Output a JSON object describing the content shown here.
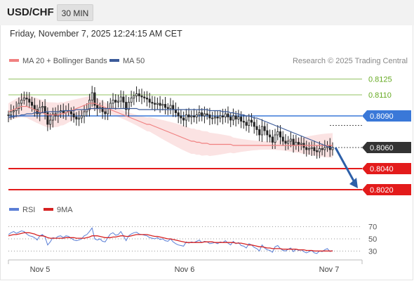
{
  "header": {
    "pair": "USD/CHF",
    "timeframe": "30 MIN",
    "datetime": "Friday, November 7, 2025 12:24:15 AM CET"
  },
  "legend": {
    "ma20": "MA 20 + Bollinger Bands",
    "ma50": "MA 50",
    "credit": "Research © 2025 Trading Central",
    "rsi": "RSI",
    "ma9": "9MA"
  },
  "colors": {
    "candle_up": "#222222",
    "candle_down": "#222222",
    "ma20": "#f08080",
    "bollinger_fill": "#fbe0e0",
    "ma50": "#3b5a99",
    "resistance_green": "#66aa22",
    "current_level_blue": "#3a78d8",
    "support_red": "#e31b1b",
    "current_price_tag": "#333333",
    "arrow": "#2d5fa8",
    "rsi": "#5b7fd6",
    "rsi_ma": "#d62222"
  },
  "chart_data": [
    {
      "type": "candlestick",
      "title": "USD/CHF",
      "x_ticks": [
        "Nov 5",
        "Nov 6",
        "Nov 7"
      ],
      "ylim": [
        0.8012,
        0.8136
      ],
      "levels": [
        {
          "value": 0.8125,
          "label": "0.8125",
          "style": "green-line"
        },
        {
          "value": 0.811,
          "label": "0.8110",
          "style": "green-line"
        },
        {
          "value": 0.809,
          "label": "0.8090",
          "style": "blue-tag"
        },
        {
          "value": 0.806,
          "label": "0.8060",
          "style": "current-price-tag"
        },
        {
          "value": 0.804,
          "label": "0.8040",
          "style": "red-tag"
        },
        {
          "value": 0.802,
          "label": "0.8020",
          "style": "red-tag"
        }
      ],
      "forecast_arrow": {
        "from": 0.806,
        "to": 0.802,
        "direction": "down"
      },
      "close": [
        0.8091,
        0.8094,
        0.8095,
        0.8097,
        0.8102,
        0.8105,
        0.8107,
        0.8106,
        0.8103,
        0.81,
        0.8096,
        0.8092,
        0.8098,
        0.8099,
        0.8093,
        0.8082,
        0.8086,
        0.8092,
        0.809,
        0.8094,
        0.8095,
        0.8093,
        0.8095,
        0.8094,
        0.8092,
        0.8089,
        0.8087,
        0.8088,
        0.809,
        0.8094,
        0.8096,
        0.8105,
        0.8112,
        0.81,
        0.8097,
        0.8098,
        0.8094,
        0.8092,
        0.8097,
        0.8102,
        0.8105,
        0.8103,
        0.8104,
        0.8108,
        0.8103,
        0.8096,
        0.8103,
        0.8107,
        0.8109,
        0.8111,
        0.8109,
        0.8108,
        0.8107,
        0.8106,
        0.8103,
        0.8102,
        0.8101,
        0.8102,
        0.81,
        0.8101,
        0.8098,
        0.8097,
        0.81,
        0.8096,
        0.8093,
        0.809,
        0.8088,
        0.8086,
        0.8091,
        0.8089,
        0.809,
        0.8089,
        0.8091,
        0.8093,
        0.809,
        0.8092,
        0.8091,
        0.8088,
        0.8088,
        0.8089,
        0.8088,
        0.809,
        0.8089,
        0.8092,
        0.8089,
        0.8086,
        0.809,
        0.8087,
        0.8089,
        0.8085,
        0.8084,
        0.8081,
        0.8086,
        0.8084,
        0.808,
        0.8077,
        0.8072,
        0.808,
        0.8076,
        0.8072,
        0.807,
        0.8065,
        0.8072,
        0.8075,
        0.807,
        0.8066,
        0.8064,
        0.8066,
        0.8068,
        0.8062,
        0.8065,
        0.8063,
        0.8064,
        0.806,
        0.8058,
        0.8059,
        0.806,
        0.8057,
        0.8056,
        0.8059,
        0.8058,
        0.806,
        0.8062,
        0.8058,
        0.806
      ],
      "ma20": [
        0.8094,
        0.8095,
        0.8096,
        0.8097,
        0.8098,
        0.8099,
        0.8099,
        0.8099,
        0.8098,
        0.8097,
        0.8096,
        0.8095,
        0.8094,
        0.8093,
        0.8092,
        0.8091,
        0.8091,
        0.8091,
        0.8091,
        0.8091,
        0.8092,
        0.8092,
        0.8093,
        0.8094,
        0.8095,
        0.8096,
        0.8097,
        0.8098,
        0.8099,
        0.81,
        0.8101,
        0.8102,
        0.8102,
        0.8102,
        0.8101,
        0.81,
        0.8099,
        0.8098,
        0.8097,
        0.8096,
        0.8095,
        0.8094,
        0.8093,
        0.8092,
        0.8091,
        0.809,
        0.8089,
        0.8088,
        0.8087,
        0.8086,
        0.8085,
        0.8084,
        0.8083,
        0.8082,
        0.8082,
        0.8081,
        0.808,
        0.8079,
        0.8078,
        0.8077,
        0.8076,
        0.8075,
        0.8074,
        0.8073,
        0.8072,
        0.8071,
        0.807,
        0.8069,
        0.8068,
        0.8067,
        0.8066,
        0.8066,
        0.8065,
        0.8065,
        0.8064,
        0.8064,
        0.8064,
        0.8063,
        0.8063,
        0.8063,
        0.8063,
        0.8063,
        0.8063,
        0.8063,
        0.8063,
        0.8063,
        0.8062,
        0.8062,
        0.8062,
        0.8062,
        0.8062,
        0.8062,
        0.8062,
        0.8062,
        0.8062,
        0.8062,
        0.8062,
        0.8062,
        0.8062,
        0.8062,
        0.8062,
        0.8062,
        0.8062,
        0.8062,
        0.8062,
        0.8062,
        0.8062,
        0.8062,
        0.8062,
        0.8062,
        0.8062,
        0.8062,
        0.8062,
        0.8062,
        0.8062,
        0.8062,
        0.8062,
        0.8062,
        0.8062,
        0.8062,
        0.8062,
        0.8062,
        0.8062,
        0.8062,
        0.8062
      ],
      "ma50": [
        0.8088,
        0.8089,
        0.8089,
        0.809,
        0.809,
        0.8091,
        0.8091,
        0.8092,
        0.8092,
        0.8092,
        0.8093,
        0.8093,
        0.8093,
        0.8093,
        0.8094,
        0.8094,
        0.8094,
        0.8094,
        0.8094,
        0.8094,
        0.8094,
        0.8095,
        0.8095,
        0.8095,
        0.8095,
        0.8095,
        0.8096,
        0.8096,
        0.8096,
        0.8096,
        0.8096,
        0.8097,
        0.8097,
        0.8097,
        0.8097,
        0.8097,
        0.8097,
        0.8097,
        0.8097,
        0.8097,
        0.8097,
        0.8097,
        0.8097,
        0.8097,
        0.8097,
        0.8097,
        0.8097,
        0.8097,
        0.8097,
        0.8097,
        0.8096,
        0.8096,
        0.8096,
        0.8096,
        0.8096,
        0.8096,
        0.8096,
        0.8096,
        0.8096,
        0.8096,
        0.8096,
        0.8096,
        0.8096,
        0.8096,
        0.8096,
        0.8096,
        0.8096,
        0.8096,
        0.8096,
        0.8096,
        0.8096,
        0.8096,
        0.8096,
        0.8096,
        0.8096,
        0.8096,
        0.8096,
        0.8095,
        0.8095,
        0.8095,
        0.8095,
        0.8095,
        0.8094,
        0.8094,
        0.8094,
        0.8093,
        0.8093,
        0.8092,
        0.8092,
        0.8091,
        0.8091,
        0.809,
        0.809,
        0.8089,
        0.8088,
        0.8088,
        0.8087,
        0.8086,
        0.8085,
        0.8084,
        0.8083,
        0.8082,
        0.8081,
        0.808,
        0.8079,
        0.8078,
        0.8077,
        0.8076,
        0.8075,
        0.8074,
        0.8073,
        0.8072,
        0.8071,
        0.807,
        0.8069,
        0.8068,
        0.8067,
        0.8066,
        0.8065,
        0.8064,
        0.8063,
        0.8062,
        0.8061,
        0.806,
        0.806
      ]
    },
    {
      "type": "line",
      "title": "RSI",
      "y_ticks": [
        70,
        50,
        30
      ],
      "ylim": [
        20,
        80
      ],
      "series": [
        {
          "name": "RSI",
          "values": [
            57,
            60,
            62,
            59,
            61,
            63,
            62,
            58,
            55,
            54,
            52,
            48,
            55,
            57,
            53,
            40,
            45,
            52,
            51,
            54,
            55,
            52,
            55,
            54,
            51,
            48,
            47,
            48,
            50,
            55,
            57,
            62,
            68,
            50,
            48,
            50,
            46,
            45,
            52,
            58,
            60,
            56,
            57,
            62,
            55,
            47,
            55,
            58,
            60,
            61,
            58,
            57,
            56,
            55,
            52,
            51,
            50,
            52,
            49,
            50,
            47,
            46,
            50,
            45,
            42,
            40,
            39,
            38,
            45,
            43,
            45,
            44,
            46,
            48,
            44,
            46,
            45,
            42,
            43,
            44,
            42,
            45,
            44,
            47,
            43,
            40,
            46,
            42,
            44,
            39,
            38,
            35,
            42,
            40,
            36,
            34,
            30,
            40,
            35,
            32,
            31,
            28,
            37,
            39,
            34,
            31,
            30,
            33,
            35,
            29,
            33,
            31,
            32,
            29,
            27,
            29,
            31,
            27,
            26,
            30,
            29,
            32,
            34,
            29,
            31
          ]
        },
        {
          "name": "9MA",
          "values": [
            55,
            56,
            57,
            57,
            58,
            59,
            60,
            60,
            60,
            59,
            58,
            56,
            55,
            55,
            54,
            52,
            51,
            51,
            51,
            51,
            51,
            51,
            52,
            52,
            52,
            52,
            51,
            51,
            51,
            51,
            52,
            53,
            55,
            55,
            55,
            54,
            53,
            52,
            52,
            52,
            53,
            53,
            54,
            55,
            55,
            54,
            54,
            55,
            56,
            57,
            57,
            57,
            57,
            57,
            56,
            55,
            54,
            54,
            53,
            52,
            51,
            50,
            50,
            49,
            48,
            47,
            46,
            45,
            44,
            44,
            44,
            44,
            44,
            44,
            44,
            45,
            45,
            45,
            45,
            44,
            44,
            44,
            44,
            44,
            44,
            44,
            44,
            43,
            43,
            43,
            42,
            41,
            40,
            40,
            39,
            38,
            37,
            37,
            36,
            35,
            35,
            34,
            34,
            34,
            34,
            33,
            33,
            33,
            33,
            33,
            33,
            32,
            32,
            32,
            31,
            31,
            31,
            30,
            30,
            30,
            30,
            30,
            30,
            30,
            30
          ]
        }
      ]
    }
  ]
}
